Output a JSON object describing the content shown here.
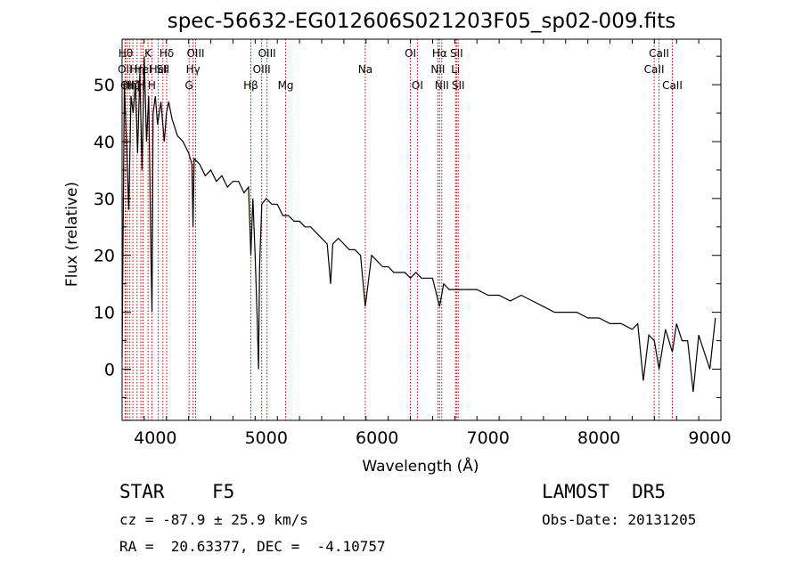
{
  "chart_data": {
    "type": "line",
    "title": "spec-56632-EG012606S021203F05_sp02-009.fits",
    "xlabel": "Wavelength (Å)",
    "ylabel": "Flux (relative)",
    "xlim": [
      3700,
      9100
    ],
    "ylim": [
      -9,
      58
    ],
    "xticks": [
      4000,
      5000,
      6000,
      7000,
      8000,
      9000
    ],
    "yticks": [
      0,
      10,
      20,
      30,
      40,
      50
    ],
    "grid": false,
    "series": [
      {
        "x": [
          3700,
          3720,
          3740,
          3760,
          3780,
          3800,
          3820,
          3840,
          3860,
          3880,
          3900,
          3920,
          3940,
          3960,
          3970,
          3980,
          4000,
          4020,
          4050,
          4080,
          4100,
          4120,
          4150,
          4200,
          4250,
          4300,
          4330,
          4340,
          4350,
          4400,
          4450,
          4500,
          4550,
          4600,
          4650,
          4700,
          4750,
          4800,
          4840,
          4861,
          4880,
          4900,
          4920,
          4930,
          4940,
          4960,
          5000,
          5050,
          5100,
          5150,
          5200,
          5250,
          5300,
          5350,
          5400,
          5450,
          5500,
          5550,
          5580,
          5600,
          5650,
          5700,
          5750,
          5800,
          5850,
          5893,
          5950,
          6000,
          6050,
          6100,
          6150,
          6200,
          6250,
          6300,
          6350,
          6400,
          6450,
          6500,
          6563,
          6600,
          6650,
          6700,
          6750,
          6800,
          6900,
          7000,
          7100,
          7200,
          7300,
          7400,
          7500,
          7600,
          7700,
          7800,
          7900,
          8000,
          8100,
          8200,
          8300,
          8350,
          8400,
          8450,
          8500,
          8542,
          8600,
          8662,
          8700,
          8750,
          8800,
          8850,
          8900,
          8950,
          9000,
          9050
        ],
        "y": [
          2,
          50,
          40,
          28,
          48,
          45,
          50,
          38,
          52,
          35,
          55,
          40,
          48,
          20,
          10,
          45,
          48,
          43,
          47,
          40,
          45,
          47,
          44,
          41,
          40,
          38,
          36,
          25,
          37,
          36,
          34,
          35,
          33,
          34,
          32,
          33,
          33,
          31,
          32,
          20,
          30,
          20,
          8,
          0,
          18,
          29,
          30,
          29,
          29,
          27,
          27,
          26,
          26,
          25,
          25,
          24,
          23,
          22,
          15,
          22,
          23,
          22,
          21,
          21,
          20,
          11,
          20,
          19,
          18,
          18,
          17,
          17,
          17,
          16,
          17,
          16,
          16,
          16,
          11,
          15,
          14,
          14,
          14,
          14,
          14,
          13,
          13,
          12,
          13,
          12,
          11,
          10,
          10,
          10,
          9,
          9,
          8,
          8,
          7,
          8,
          -2,
          6,
          5,
          0,
          7,
          3,
          8,
          5,
          5,
          -4,
          6,
          3,
          0,
          9
        ]
      }
    ],
    "line_markers": [
      {
        "x": 3733,
        "label": "Hθ",
        "row": 0
      },
      {
        "x": 3727,
        "label": "OII",
        "row": 1
      },
      {
        "x": 3750,
        "label": "OII",
        "row": 2
      },
      {
        "x": 3770,
        "label": "Hη",
        "row": 2
      },
      {
        "x": 3797,
        "label": "Hζ",
        "row": 2
      },
      {
        "x": 3835,
        "label": "Hη",
        "row": 1
      },
      {
        "x": 3869,
        "label": "H",
        "row": 2
      },
      {
        "x": 3889,
        "label": "HeI",
        "row": 1
      },
      {
        "x": 3934,
        "label": "K",
        "row": 0
      },
      {
        "x": 3968,
        "label": "H",
        "row": 2
      },
      {
        "x": 4026,
        "label": "HeI",
        "row": 1
      },
      {
        "x": 4068,
        "label": "SII",
        "row": 1
      },
      {
        "x": 4102,
        "label": "Hδ",
        "row": 0
      },
      {
        "x": 4304,
        "label": "G",
        "row": 2
      },
      {
        "x": 4340,
        "label": "Hγ",
        "row": 1
      },
      {
        "x": 4363,
        "label": "OIII",
        "row": 0
      },
      {
        "x": 4861,
        "label": "Hβ",
        "row": 2
      },
      {
        "x": 4959,
        "label": "OIII",
        "row": 1
      },
      {
        "x": 5007,
        "label": "OIII",
        "row": 0
      },
      {
        "x": 5175,
        "label": "Mg",
        "row": 2
      },
      {
        "x": 5893,
        "label": "Na",
        "row": 1
      },
      {
        "x": 6300,
        "label": "OI",
        "row": 0
      },
      {
        "x": 6363,
        "label": "OI",
        "row": 2
      },
      {
        "x": 6548,
        "label": "NII",
        "row": 1
      },
      {
        "x": 6563,
        "label": "Hα",
        "row": 0
      },
      {
        "x": 6583,
        "label": "NII",
        "row": 2
      },
      {
        "x": 6707,
        "label": "Li",
        "row": 1
      },
      {
        "x": 6716,
        "label": "SII",
        "row": 0
      },
      {
        "x": 6731,
        "label": "SII",
        "row": 2
      },
      {
        "x": 8498,
        "label": "CaII",
        "row": 1
      },
      {
        "x": 8542,
        "label": "CaII",
        "row": 0
      },
      {
        "x": 8662,
        "label": "CaII",
        "row": 2
      }
    ]
  },
  "info": {
    "object_class": "STAR",
    "subclass": "F5",
    "survey": "LAMOST  DR5",
    "cz": "cz = -87.9 ± 25.9 km/s",
    "obs_date": "Obs-Date: 20131205",
    "coords": "RA =  20.63377, DEC =  -4.10757"
  },
  "colors": {
    "spectrum": "#000000",
    "marker_line": "#c00000",
    "axes": "#000000"
  }
}
